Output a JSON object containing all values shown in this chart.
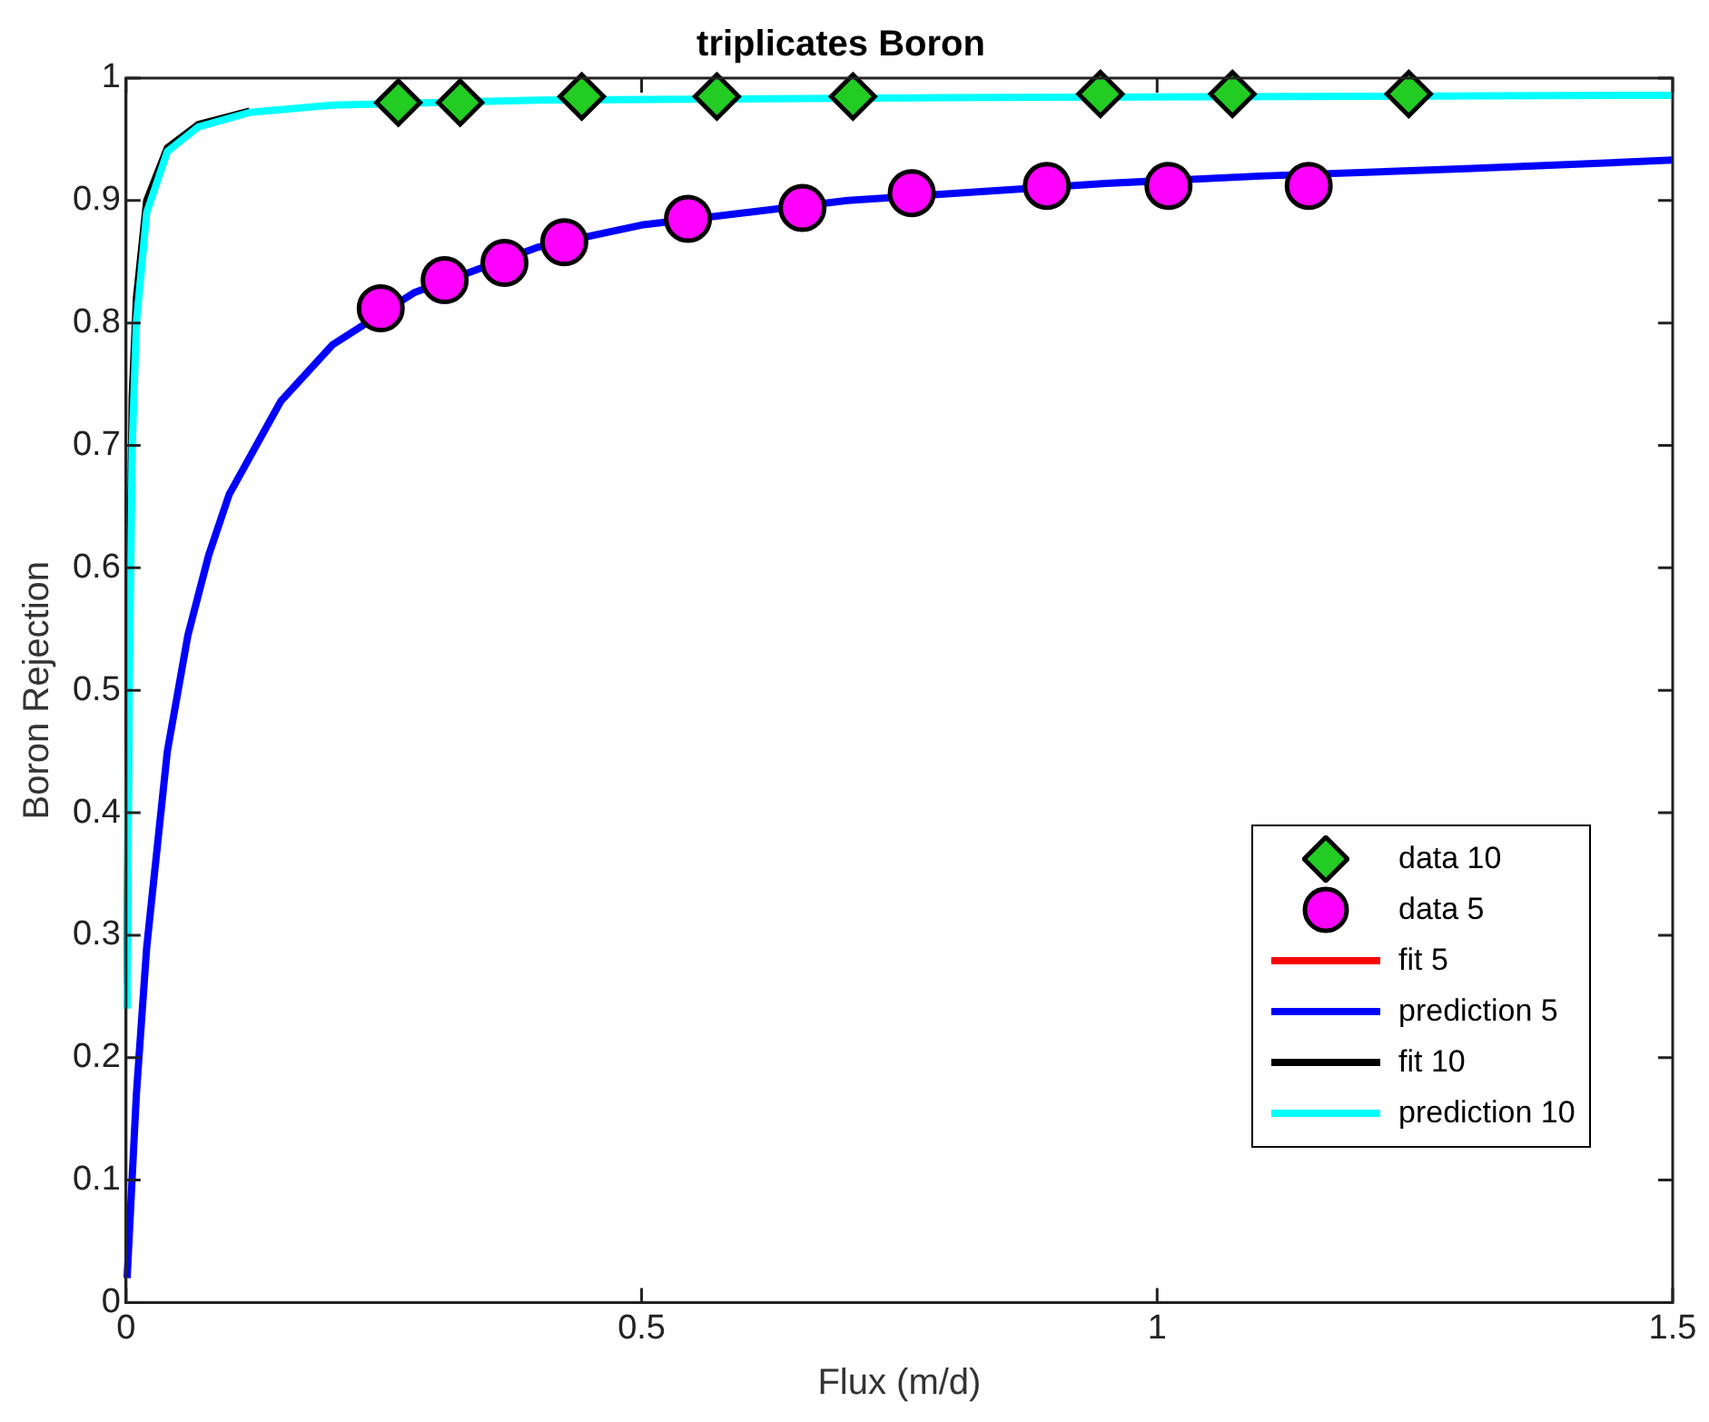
{
  "chart_data": {
    "type": "scatter",
    "title": "triplicates Boron",
    "xlabel": "Flux (m/d)",
    "ylabel": "Boron Rejection",
    "xlim": [
      0,
      1.5
    ],
    "xticks": [
      0,
      0.5,
      1,
      1.5
    ],
    "ylim": [
      0,
      1
    ],
    "yticks": [
      0,
      0.1,
      0.2,
      0.3,
      0.4,
      0.5,
      0.6,
      0.7,
      0.8,
      0.9,
      1
    ],
    "grid": false,
    "legend": "bottom right",
    "series": [
      {
        "name": "data 10",
        "type": "scatter",
        "marker": "diamond",
        "color": "#22cc22",
        "x": [
          0.264,
          0.324,
          0.442,
          0.573,
          0.705,
          0.945,
          1.073,
          1.244
        ],
        "values": [
          0.98,
          0.98,
          0.985,
          0.985,
          0.985,
          0.987,
          0.987,
          0.987
        ]
      },
      {
        "name": "data 5",
        "type": "scatter",
        "marker": "circle",
        "color": "#ff00ff",
        "x": [
          0.247,
          0.309,
          0.367,
          0.425,
          0.545,
          0.656,
          0.762,
          0.893,
          1.011,
          1.147
        ],
        "values": [
          0.812,
          0.835,
          0.849,
          0.866,
          0.885,
          0.894,
          0.906,
          0.912,
          0.912,
          0.912
        ]
      },
      {
        "name": "fit 5",
        "type": "line",
        "color": "#ff0000"
      },
      {
        "name": "prediction 5",
        "type": "line",
        "color": "#0000ff",
        "x": [
          0.001,
          0.01,
          0.02,
          0.04,
          0.06,
          0.08,
          0.1,
          0.15,
          0.2,
          0.28,
          0.4,
          0.5,
          0.7,
          0.95,
          1.1,
          1.3,
          1.5
        ],
        "values": [
          0.02,
          0.17,
          0.29,
          0.45,
          0.545,
          0.61,
          0.66,
          0.736,
          0.782,
          0.825,
          0.862,
          0.88,
          0.9,
          0.914,
          0.92,
          0.926,
          0.933
        ]
      },
      {
        "name": "fit 10",
        "type": "line",
        "color": "#000000",
        "x": [
          0.001,
          0.003,
          0.006,
          0.01,
          0.02,
          0.04,
          0.07,
          0.12
        ],
        "values": [
          0.26,
          0.55,
          0.74,
          0.82,
          0.9,
          0.943,
          0.962,
          0.973
        ]
      },
      {
        "name": "prediction 10",
        "type": "line",
        "color": "#00ffff",
        "x": [
          0.001,
          0.003,
          0.006,
          0.01,
          0.02,
          0.04,
          0.07,
          0.12,
          0.2,
          0.4,
          0.8,
          1.5
        ],
        "values": [
          0.24,
          0.5,
          0.7,
          0.8,
          0.89,
          0.94,
          0.96,
          0.972,
          0.978,
          0.982,
          0.984,
          0.986
        ]
      }
    ]
  }
}
